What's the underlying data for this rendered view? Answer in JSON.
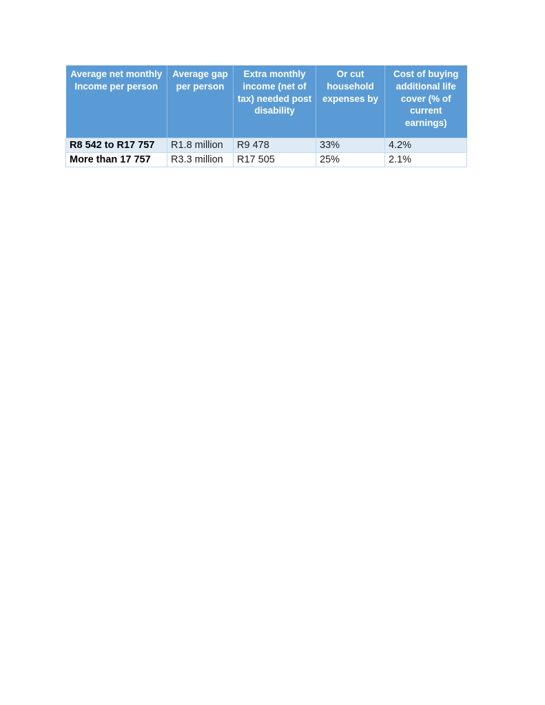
{
  "colors": {
    "header_bg": "#5B9BD5",
    "header_text": "#FFFFFF",
    "row_alt_bg": "#DEEBF7",
    "row_bg": "#FFFFFF",
    "border": "#BDD7EE"
  },
  "table": {
    "headers": [
      "Average net monthly Income per person",
      "Average gap per person",
      "Extra monthly income (net of tax) needed post disability",
      "Or cut household expenses by",
      "Cost of buying additional life cover (% of current earnings)"
    ],
    "rows": [
      [
        "R8 542 to R17 757",
        "R1.8 million",
        "R9 478",
        "33%",
        "4.2%"
      ],
      [
        "More than 17 757",
        "R3.3 million",
        "R17 505",
        "25%",
        "2.1%"
      ]
    ]
  }
}
